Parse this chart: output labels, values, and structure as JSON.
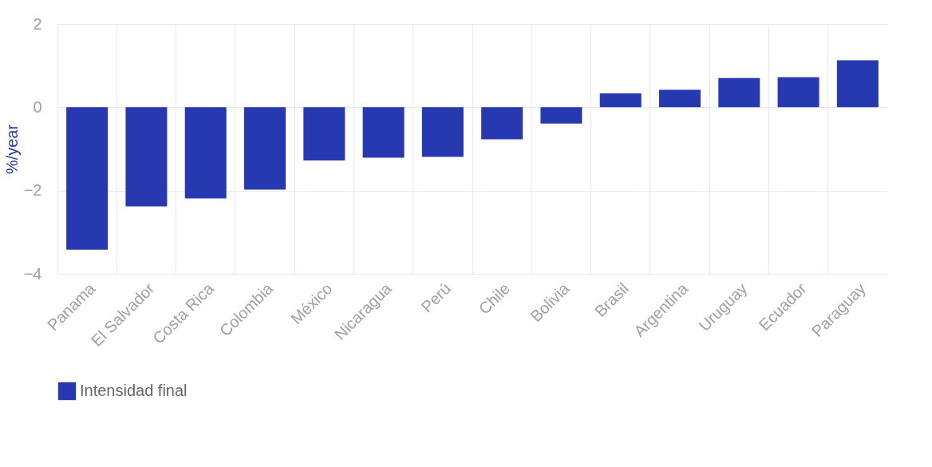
{
  "chart_data": {
    "type": "bar",
    "ylabel": "%/year",
    "categories": [
      "Panama",
      "El Salvador",
      "Costa Rica",
      "Colombia",
      "México",
      "Nicaragua",
      "Perú",
      "Chile",
      "Bolivia",
      "Brasil",
      "Argentina",
      "Uruguay",
      "Ecuador",
      "Paraguay"
    ],
    "series": [
      {
        "name": "Intensidad final",
        "color": "#2639b0",
        "values": [
          -3.42,
          -2.38,
          -2.19,
          -1.98,
          -1.28,
          -1.21,
          -1.19,
          -0.77,
          -0.39,
          0.33,
          0.42,
          0.7,
          0.72,
          1.13
        ]
      }
    ],
    "ylim": [
      -4,
      2
    ],
    "yticks": [
      -4,
      -2,
      0,
      2
    ],
    "grid": true,
    "legend": "bottom"
  }
}
